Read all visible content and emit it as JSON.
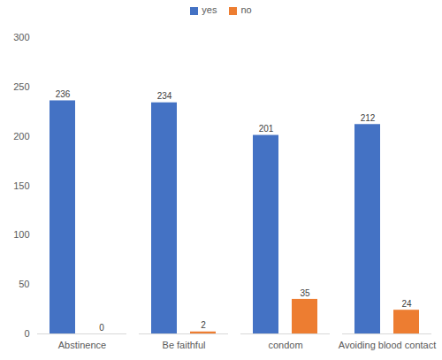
{
  "chart_data": {
    "type": "bar",
    "categories": [
      "Abstinence",
      "Be faithful",
      "condom",
      "Avoiding blood contact"
    ],
    "series": [
      {
        "name": "yes",
        "color": "#4472c4",
        "values": [
          236,
          234,
          201,
          212
        ]
      },
      {
        "name": "no",
        "color": "#ed7d31",
        "values": [
          0,
          2,
          35,
          24
        ]
      }
    ],
    "ylim": [
      0,
      300
    ],
    "yticks": [
      0,
      50,
      100,
      150,
      200,
      250,
      300
    ],
    "grid": false,
    "legend": "top",
    "data_labels": true
  }
}
